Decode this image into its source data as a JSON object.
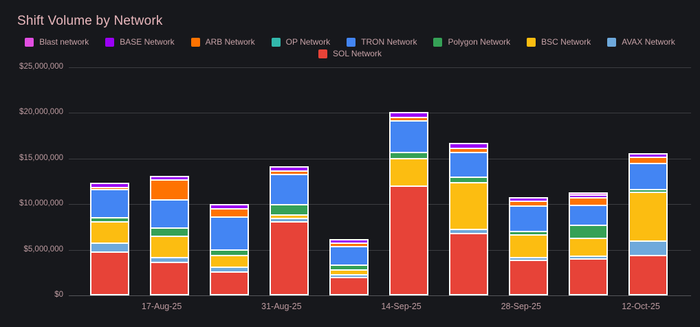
{
  "chart_data": {
    "type": "bar",
    "stacked": true,
    "title": "Shift Volume by Network",
    "legend_position": "top",
    "grid": true,
    "background_color": "#17181c",
    "title_color": "#e9b8bd",
    "axis_text_color": "#bd9ba0",
    "ylim": [
      0,
      25000000
    ],
    "y_tick_labels": [
      "$0",
      "$5,000,000",
      "$10,000,000",
      "$15,000,000",
      "$20,000,000",
      "$25,000,000"
    ],
    "num_bars": 10,
    "x_tick_labels": [
      "17-Aug-25",
      "31-Aug-25",
      "14-Sep-25",
      "28-Sep-25",
      "12-Oct-25"
    ],
    "x_tick_bar_indices": [
      1,
      3,
      5,
      7,
      9
    ],
    "series": [
      {
        "name": "Blast network",
        "color": "#e14ee1",
        "values": [
          0,
          0,
          0,
          0,
          0,
          0,
          0,
          0,
          200000,
          0
        ]
      },
      {
        "name": "BASE Network",
        "color": "#9b00f5",
        "values": [
          450000,
          350000,
          450000,
          450000,
          350000,
          550000,
          500000,
          350000,
          350000,
          400000
        ]
      },
      {
        "name": "ARB Network",
        "color": "#fe7301",
        "values": [
          250000,
          2200000,
          900000,
          350000,
          400000,
          350000,
          450000,
          550000,
          800000,
          700000
        ]
      },
      {
        "name": "OP Network",
        "color": "#32b8ac",
        "values": [
          0,
          0,
          0,
          0,
          0,
          0,
          0,
          0,
          0,
          0
        ]
      },
      {
        "name": "TRON Network",
        "color": "#4385f3",
        "values": [
          3100000,
          3100000,
          3600000,
          3300000,
          2000000,
          3500000,
          2700000,
          2750000,
          2200000,
          2850000
        ]
      },
      {
        "name": "Polygon Network",
        "color": "#35a156",
        "values": [
          400000,
          900000,
          600000,
          1200000,
          550000,
          650000,
          650000,
          400000,
          1400000,
          300000
        ]
      },
      {
        "name": "BSC Network",
        "color": "#fcbd11",
        "values": [
          2350000,
          2350000,
          1300000,
          350000,
          550000,
          3000000,
          5100000,
          2450000,
          2000000,
          5300000
        ]
      },
      {
        "name": "AVAX Network",
        "color": "#6ea9dc",
        "values": [
          1000000,
          500000,
          500000,
          350000,
          300000,
          0,
          450000,
          350000,
          300000,
          1600000
        ]
      },
      {
        "name": "SOL Network",
        "color": "#e74338",
        "values": [
          4650000,
          3550000,
          2500000,
          8000000,
          1850000,
          11900000,
          6700000,
          3750000,
          3900000,
          4300000
        ]
      }
    ],
    "legend_rows": [
      [
        0,
        1,
        2,
        3,
        4,
        5,
        6,
        7
      ],
      [
        8
      ]
    ]
  }
}
